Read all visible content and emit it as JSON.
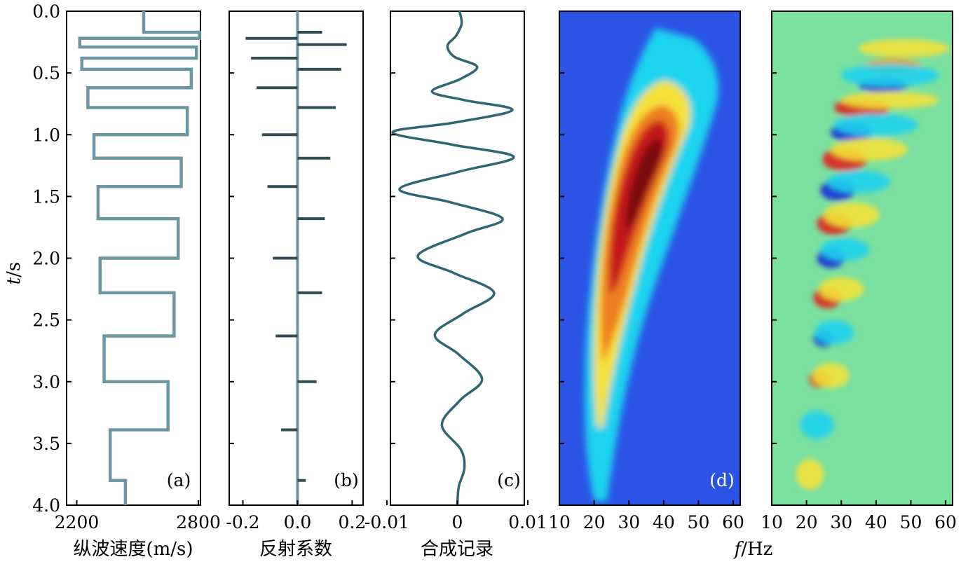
{
  "figure": {
    "y_axis_label_italic": "t",
    "y_axis_label_rest": "/s",
    "x_axis_label_italic": "f",
    "x_axis_label_rest": "/Hz",
    "y_ticks": [
      "0.0",
      "0.5",
      "1.0",
      "1.5",
      "2.0",
      "2.5",
      "3.0",
      "3.5",
      "4.0"
    ]
  },
  "chart_data": [
    {
      "panel": "(a)",
      "type": "line",
      "xlabel": "纵波速度(m/s)",
      "ylabel": "t/s",
      "xlim": [
        2150,
        2810
      ],
      "ylim": [
        0.0,
        4.0
      ],
      "x_tick_labels": [
        "2200",
        "2800"
      ],
      "x_ticks": [
        2200,
        2800
      ],
      "series": [
        {
          "layers": [
            [
              0.0,
              0.17,
              2530
            ],
            [
              0.17,
              0.22,
              2805
            ],
            [
              0.22,
              0.29,
              2215
            ],
            [
              0.29,
              0.38,
              2790
            ],
            [
              0.38,
              0.47,
              2225
            ],
            [
              0.47,
              0.62,
              2765
            ],
            [
              0.62,
              0.78,
              2255
            ],
            [
              0.78,
              1.0,
              2745
            ],
            [
              1.0,
              1.19,
              2285
            ],
            [
              1.19,
              1.42,
              2715
            ],
            [
              1.42,
              1.68,
              2305
            ],
            [
              1.68,
              2.0,
              2700
            ],
            [
              2.0,
              2.28,
              2315
            ],
            [
              2.28,
              2.63,
              2680
            ],
            [
              2.63,
              3.0,
              2335
            ],
            [
              3.0,
              3.39,
              2650
            ],
            [
              3.39,
              3.8,
              2365
            ],
            [
              3.8,
              4.0,
              2440
            ]
          ],
          "tail_value": 2470
        }
      ]
    },
    {
      "panel": "(b)",
      "type": "bar",
      "xlabel": "反射系数",
      "xlim": [
        -0.25,
        0.24
      ],
      "ylim": [
        0.0,
        4.0
      ],
      "x_tick_labels": [
        "-0.2",
        "0.0",
        "0.2"
      ],
      "x_ticks": [
        -0.2,
        0.0,
        0.2
      ],
      "spikes": [
        {
          "t": 0.17,
          "r": 0.09
        },
        {
          "t": 0.22,
          "r": -0.19
        },
        {
          "t": 0.27,
          "r": 0.18
        },
        {
          "t": 0.38,
          "r": -0.17
        },
        {
          "t": 0.47,
          "r": 0.16
        },
        {
          "t": 0.62,
          "r": -0.15
        },
        {
          "t": 0.78,
          "r": 0.14
        },
        {
          "t": 1.0,
          "r": -0.13
        },
        {
          "t": 1.19,
          "r": 0.12
        },
        {
          "t": 1.42,
          "r": -0.11
        },
        {
          "t": 1.68,
          "r": 0.1
        },
        {
          "t": 2.0,
          "r": -0.09
        },
        {
          "t": 2.28,
          "r": 0.09
        },
        {
          "t": 2.63,
          "r": -0.08
        },
        {
          "t": 3.0,
          "r": 0.07
        },
        {
          "t": 3.39,
          "r": -0.06
        },
        {
          "t": 3.8,
          "r": 0.03
        }
      ]
    },
    {
      "panel": "(c)",
      "type": "line",
      "xlabel": "合成记录",
      "xlim": [
        -0.0095,
        0.0095
      ],
      "ylim": [
        0.0,
        4.0
      ],
      "x_tick_labels": [
        "-0.01",
        "0",
        "0.01"
      ],
      "x_ticks": [
        -0.01,
        0.0,
        0.01
      ],
      "points": [
        [
          0.0,
          0.0003
        ],
        [
          0.1,
          0.0006
        ],
        [
          0.2,
          -0.0002
        ],
        [
          0.28,
          -0.0014
        ],
        [
          0.37,
          -0.0004
        ],
        [
          0.45,
          0.0028
        ],
        [
          0.55,
          0.0004
        ],
        [
          0.65,
          -0.0036
        ],
        [
          0.72,
          0.001
        ],
        [
          0.8,
          0.0078
        ],
        [
          0.9,
          -0.0002
        ],
        [
          0.98,
          -0.0092
        ],
        [
          1.08,
          -0.0008
        ],
        [
          1.18,
          0.008
        ],
        [
          1.3,
          0.0002
        ],
        [
          1.44,
          -0.0082
        ],
        [
          1.55,
          -0.0008
        ],
        [
          1.68,
          0.0064
        ],
        [
          1.8,
          0.0012
        ],
        [
          1.98,
          -0.0056
        ],
        [
          2.12,
          -0.0005
        ],
        [
          2.28,
          0.0052
        ],
        [
          2.45,
          0.0008
        ],
        [
          2.62,
          -0.0032
        ],
        [
          2.78,
          0.0002
        ],
        [
          2.98,
          0.0035
        ],
        [
          3.15,
          0.0004
        ],
        [
          3.35,
          -0.0022
        ],
        [
          3.55,
          0.0005
        ],
        [
          3.7,
          0.001
        ],
        [
          3.85,
          0.0002
        ],
        [
          4.0,
          0.0
        ]
      ]
    },
    {
      "panel": "(d)",
      "type": "heatmap",
      "xlabel": "f/Hz",
      "xlim": [
        10,
        62
      ],
      "ylim": [
        0.0,
        4.0
      ],
      "x_tick_labels": [
        "10",
        "20",
        "30",
        "40",
        "50",
        "60"
      ],
      "x_ticks": [
        10,
        20,
        30,
        40,
        50,
        60
      ],
      "colormap": [
        "#2b54e6",
        "#1fd3ee",
        "#f5e23a",
        "#ef7f22",
        "#c4161c",
        "#7a0d0f"
      ],
      "background": "#2b54e6",
      "ridge": [
        [
          0.3,
          40.5
        ],
        [
          1.0,
          37.0
        ],
        [
          1.6,
          32.5
        ],
        [
          2.2,
          29.0
        ],
        [
          2.8,
          26.0
        ],
        [
          3.4,
          24.0
        ],
        [
          3.9,
          22.5
        ]
      ]
    },
    {
      "panel": "",
      "type": "heatmap",
      "xlabel": "f/Hz",
      "xlim": [
        10,
        62
      ],
      "ylim": [
        0.0,
        4.0
      ],
      "x_tick_labels": [
        "10",
        "20",
        "30",
        "40",
        "50",
        "60"
      ],
      "x_ticks": [
        10,
        20,
        30,
        40,
        50,
        60
      ],
      "colormap": [
        "#1a2fd6",
        "#1cd1ee",
        "#7be0a0",
        "#f2e23a",
        "#e0221f"
      ],
      "background": "#7be0a0"
    }
  ]
}
